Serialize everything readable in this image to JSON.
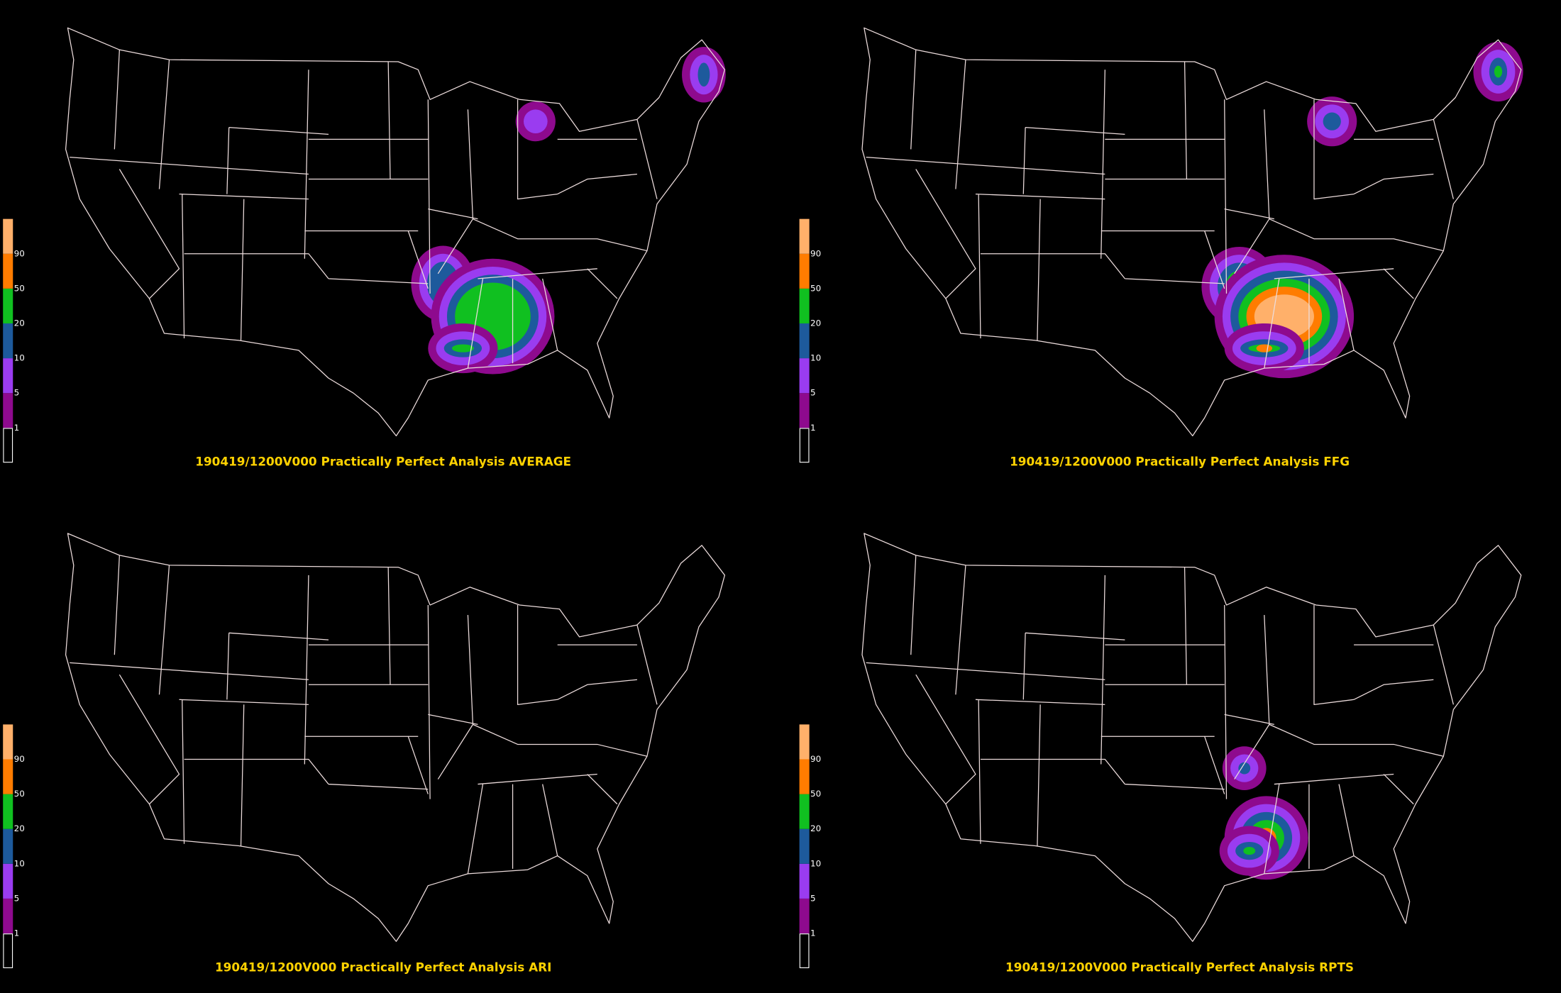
{
  "panels": [
    {
      "title": "190419/1200V000 Practically Perfect Analysis AVERAGE"
    },
    {
      "title": "190419/1200V000 Practically Perfect Analysis FFG"
    },
    {
      "title": "190419/1200V000 Practically Perfect Analysis ARI"
    },
    {
      "title": "190419/1200V000 Practically Perfect Analysis RPTS"
    }
  ],
  "legend": {
    "ticks": [
      1,
      5,
      10,
      20,
      50,
      90
    ],
    "colors": [
      "#8e0a8e",
      "#9a3cf0",
      "#1d5a9c",
      "#10c020",
      "#ff7c00",
      "#ffb06a"
    ]
  }
}
